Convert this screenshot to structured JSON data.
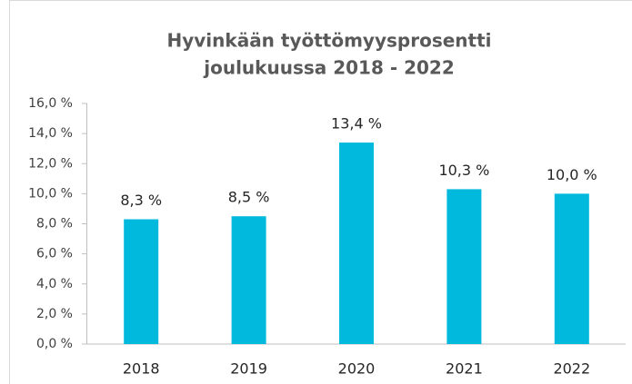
{
  "chart_data": {
    "type": "bar",
    "title": [
      "Hyvinkään työttömyysprosentti",
      "joulukuussa 2018 - 2022"
    ],
    "categories": [
      "2018",
      "2019",
      "2020",
      "2021",
      "2022"
    ],
    "values": [
      8.3,
      8.5,
      13.4,
      10.3,
      10.0
    ],
    "value_labels": [
      "8,3 %",
      "8,5 %",
      "13,4 %",
      "10,3 %",
      "10,0 %"
    ],
    "color": "#00b9dc",
    "ylim": [
      0,
      16
    ],
    "yticks": [
      {
        "value": 0,
        "label": "0,0 %"
      },
      {
        "value": 2,
        "label": "2,0 %"
      },
      {
        "value": 4,
        "label": "4,0 %"
      },
      {
        "value": 6,
        "label": "6,0 %"
      },
      {
        "value": 8,
        "label": "8,0 %"
      },
      {
        "value": 10,
        "label": "10,0 %"
      },
      {
        "value": 12,
        "label": "12,0 %"
      },
      {
        "value": 14,
        "label": "14,0 %"
      },
      {
        "value": 16,
        "label": "16,0 %"
      }
    ],
    "grid": false
  }
}
